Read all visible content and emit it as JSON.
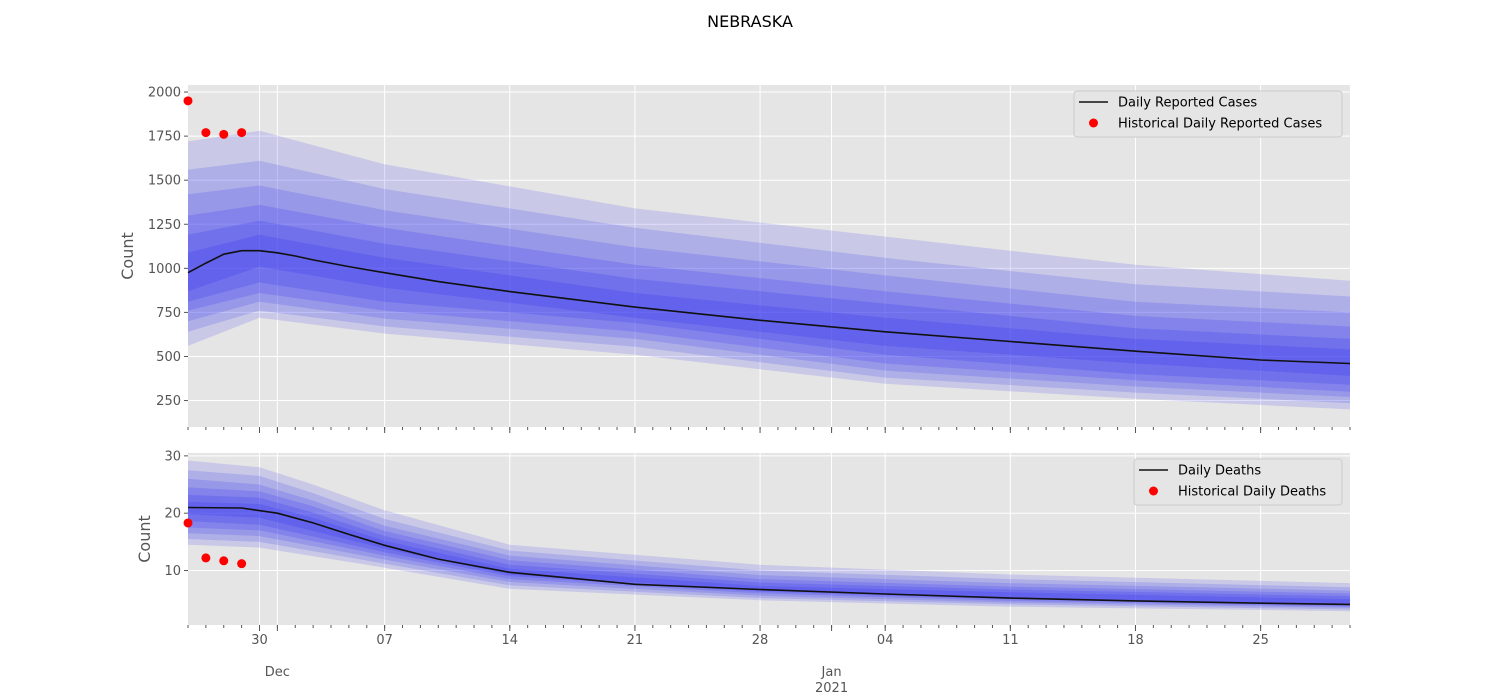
{
  "figure_title": "NEBRASKA",
  "chart_data": [
    {
      "type": "line",
      "ylabel": "Count",
      "ylim": [
        100,
        2040
      ],
      "yticks": [
        250,
        500,
        750,
        1000,
        1250,
        1500,
        1750,
        2000
      ],
      "x_start": "2020-11-26",
      "x_end": "2021-01-30",
      "legend": {
        "placement": "top-right",
        "line_label": "Daily Reported Cases",
        "points_label": "Historical Daily Reported Cases"
      },
      "median": [
        [
          "2020-11-26",
          975
        ],
        [
          "2020-11-27",
          1030
        ],
        [
          "2020-11-28",
          1080
        ],
        [
          "2020-11-29",
          1100
        ],
        [
          "2020-11-30",
          1100
        ],
        [
          "2020-12-01",
          1088
        ],
        [
          "2020-12-02",
          1070
        ],
        [
          "2020-12-03",
          1048
        ],
        [
          "2020-12-05",
          1010
        ],
        [
          "2020-12-07",
          975
        ],
        [
          "2020-12-10",
          925
        ],
        [
          "2020-12-14",
          868
        ],
        [
          "2020-12-21",
          780
        ],
        [
          "2020-12-28",
          705
        ],
        [
          "2021-01-04",
          640
        ],
        [
          "2021-01-11",
          585
        ],
        [
          "2021-01-18",
          530
        ],
        [
          "2021-01-25",
          480
        ],
        [
          "2021-01-30",
          460
        ]
      ],
      "bands": [
        {
          "upper": [
            [
              "2020-11-26",
              1720
            ],
            [
              "2020-11-30",
              1780
            ],
            [
              "2020-12-07",
              1590
            ],
            [
              "2020-12-21",
              1340
            ],
            [
              "2021-01-04",
              1180
            ],
            [
              "2021-01-18",
              1020
            ],
            [
              "2021-01-30",
              930
            ]
          ],
          "lower": [
            [
              "2020-11-26",
              560
            ],
            [
              "2020-11-30",
              720
            ],
            [
              "2020-12-07",
              630
            ],
            [
              "2020-12-21",
              510
            ],
            [
              "2021-01-04",
              345
            ],
            [
              "2021-01-18",
              260
            ],
            [
              "2021-01-30",
              200
            ]
          ]
        },
        {
          "upper": [
            [
              "2020-11-26",
              1560
            ],
            [
              "2020-11-30",
              1610
            ],
            [
              "2020-12-07",
              1450
            ],
            [
              "2020-12-21",
              1230
            ],
            [
              "2021-01-04",
              1060
            ],
            [
              "2021-01-18",
              910
            ],
            [
              "2021-01-30",
              840
            ]
          ],
          "lower": [
            [
              "2020-11-26",
              640
            ],
            [
              "2020-11-30",
              760
            ],
            [
              "2020-12-07",
              670
            ],
            [
              "2020-12-21",
              555
            ],
            [
              "2021-01-04",
              380
            ],
            [
              "2021-01-18",
              295
            ],
            [
              "2021-01-30",
              235
            ]
          ]
        },
        {
          "upper": [
            [
              "2020-11-26",
              1420
            ],
            [
              "2020-11-30",
              1470
            ],
            [
              "2020-12-07",
              1330
            ],
            [
              "2020-12-21",
              1120
            ],
            [
              "2021-01-04",
              960
            ],
            [
              "2021-01-18",
              810
            ],
            [
              "2021-01-30",
              750
            ]
          ],
          "lower": [
            [
              "2020-11-26",
              700
            ],
            [
              "2020-11-30",
              810
            ],
            [
              "2020-12-07",
              715
            ],
            [
              "2020-12-21",
              600
            ],
            [
              "2021-01-04",
              420
            ],
            [
              "2021-01-18",
              330
            ],
            [
              "2021-01-30",
              270
            ]
          ]
        },
        {
          "upper": [
            [
              "2020-11-26",
              1300
            ],
            [
              "2020-11-30",
              1360
            ],
            [
              "2020-12-07",
              1230
            ],
            [
              "2020-12-21",
              1020
            ],
            [
              "2021-01-04",
              870
            ],
            [
              "2021-01-18",
              730
            ],
            [
              "2021-01-30",
              670
            ]
          ],
          "lower": [
            [
              "2020-11-26",
              760
            ],
            [
              "2020-11-30",
              860
            ],
            [
              "2020-12-07",
              760
            ],
            [
              "2020-12-21",
              640
            ],
            [
              "2021-01-04",
              460
            ],
            [
              "2021-01-18",
              365
            ],
            [
              "2021-01-30",
              300
            ]
          ]
        },
        {
          "upper": [
            [
              "2020-11-26",
              1190
            ],
            [
              "2020-11-30",
              1270
            ],
            [
              "2020-12-07",
              1140
            ],
            [
              "2020-12-21",
              940
            ],
            [
              "2021-01-04",
              800
            ],
            [
              "2021-01-18",
              660
            ],
            [
              "2021-01-30",
              600
            ]
          ],
          "lower": [
            [
              "2020-11-26",
              810
            ],
            [
              "2020-11-30",
              920
            ],
            [
              "2020-12-07",
              810
            ],
            [
              "2020-12-21",
              690
            ],
            [
              "2021-01-04",
              510
            ],
            [
              "2021-01-18",
              400
            ],
            [
              "2021-01-30",
              340
            ]
          ]
        },
        {
          "upper": [
            [
              "2020-11-26",
              1090
            ],
            [
              "2020-11-30",
              1190
            ],
            [
              "2020-12-07",
              1060
            ],
            [
              "2020-12-21",
              860
            ],
            [
              "2021-01-04",
              720
            ],
            [
              "2021-01-18",
              600
            ],
            [
              "2021-01-30",
              540
            ]
          ],
          "lower": [
            [
              "2020-11-26",
              870
            ],
            [
              "2020-11-30",
              1010
            ],
            [
              "2020-12-07",
              890
            ],
            [
              "2020-12-21",
              720
            ],
            [
              "2021-01-04",
              560
            ],
            [
              "2021-01-18",
              460
            ],
            [
              "2021-01-30",
              390
            ]
          ]
        }
      ],
      "historical": [
        [
          "2020-11-26",
          1950
        ],
        [
          "2020-11-27",
          1770
        ],
        [
          "2020-11-28",
          1760
        ],
        [
          "2020-11-29",
          1770
        ]
      ]
    },
    {
      "type": "line",
      "ylabel": "Count",
      "ylim": [
        0.5,
        30.5
      ],
      "yticks": [
        10,
        20,
        30
      ],
      "x_start": "2020-11-26",
      "x_end": "2021-01-30",
      "legend": {
        "placement": "top-right",
        "line_label": "Daily Deaths",
        "points_label": "Historical Daily Deaths"
      },
      "median": [
        [
          "2020-11-26",
          21.0
        ],
        [
          "2020-11-29",
          20.9
        ],
        [
          "2020-12-01",
          20.0
        ],
        [
          "2020-12-03",
          18.3
        ],
        [
          "2020-12-05",
          16.3
        ],
        [
          "2020-12-07",
          14.4
        ],
        [
          "2020-12-10",
          12.0
        ],
        [
          "2020-12-14",
          9.7
        ],
        [
          "2020-12-21",
          7.6
        ],
        [
          "2020-12-28",
          6.7
        ],
        [
          "2021-01-04",
          5.9
        ],
        [
          "2021-01-11",
          5.2
        ],
        [
          "2021-01-18",
          4.7
        ],
        [
          "2021-01-25",
          4.3
        ],
        [
          "2021-01-30",
          4.1
        ]
      ],
      "bands": [
        {
          "upper": [
            [
              "2020-11-26",
              29.2
            ],
            [
              "2020-11-30",
              28.0
            ],
            [
              "2020-12-03",
              25.0
            ],
            [
              "2020-12-07",
              20.5
            ],
            [
              "2020-12-14",
              14.5
            ],
            [
              "2020-12-28",
              11.0
            ],
            [
              "2021-01-11",
              9.3
            ],
            [
              "2021-01-30",
              7.8
            ]
          ],
          "lower": [
            [
              "2020-11-26",
              14.5
            ],
            [
              "2020-11-30",
              14.0
            ],
            [
              "2020-12-07",
              10.5
            ],
            [
              "2020-12-14",
              6.8
            ],
            [
              "2020-12-28",
              4.8
            ],
            [
              "2021-01-11",
              3.7
            ],
            [
              "2021-01-30",
              2.9
            ]
          ]
        },
        {
          "upper": [
            [
              "2020-11-26",
              27.5
            ],
            [
              "2020-11-30",
              26.5
            ],
            [
              "2020-12-03",
              23.5
            ],
            [
              "2020-12-07",
              19.0
            ],
            [
              "2020-12-14",
              13.5
            ],
            [
              "2020-12-28",
              10.0
            ],
            [
              "2021-01-11",
              8.5
            ],
            [
              "2021-01-30",
              7.1
            ]
          ],
          "lower": [
            [
              "2020-11-26",
              15.5
            ],
            [
              "2020-11-30",
              15.0
            ],
            [
              "2020-12-07",
              11.2
            ],
            [
              "2020-12-14",
              7.4
            ],
            [
              "2020-12-28",
              5.2
            ],
            [
              "2021-01-11",
              4.1
            ],
            [
              "2021-01-30",
              3.2
            ]
          ]
        },
        {
          "upper": [
            [
              "2020-11-26",
              26.0
            ],
            [
              "2020-11-30",
              25.0
            ],
            [
              "2020-12-03",
              22.2
            ],
            [
              "2020-12-07",
              17.8
            ],
            [
              "2020-12-14",
              12.6
            ],
            [
              "2020-12-28",
              9.2
            ],
            [
              "2021-01-11",
              7.8
            ],
            [
              "2021-01-30",
              6.5
            ]
          ],
          "lower": [
            [
              "2020-11-26",
              16.5
            ],
            [
              "2020-11-30",
              16.0
            ],
            [
              "2020-12-07",
              11.9
            ],
            [
              "2020-12-14",
              8.0
            ],
            [
              "2020-12-28",
              5.6
            ],
            [
              "2021-01-11",
              4.4
            ],
            [
              "2021-01-30",
              3.5
            ]
          ]
        },
        {
          "upper": [
            [
              "2020-11-26",
              24.5
            ],
            [
              "2020-11-30",
              23.8
            ],
            [
              "2020-12-03",
              21.2
            ],
            [
              "2020-12-07",
              16.9
            ],
            [
              "2020-12-14",
              11.8
            ],
            [
              "2020-12-28",
              8.5
            ],
            [
              "2021-01-11",
              7.2
            ],
            [
              "2021-01-30",
              6.0
            ]
          ],
          "lower": [
            [
              "2020-11-26",
              17.5
            ],
            [
              "2020-11-30",
              17.0
            ],
            [
              "2020-12-07",
              12.6
            ],
            [
              "2020-12-14",
              8.5
            ],
            [
              "2020-12-28",
              6.0
            ],
            [
              "2021-01-11",
              4.7
            ],
            [
              "2021-01-30",
              3.7
            ]
          ]
        },
        {
          "upper": [
            [
              "2020-11-26",
              23.2
            ],
            [
              "2020-11-30",
              22.7
            ],
            [
              "2020-12-03",
              20.1
            ],
            [
              "2020-12-07",
              16.0
            ],
            [
              "2020-12-14",
              11.0
            ],
            [
              "2020-12-28",
              7.9
            ],
            [
              "2021-01-11",
              6.7
            ],
            [
              "2021-01-30",
              5.5
            ]
          ],
          "lower": [
            [
              "2020-11-26",
              18.6
            ],
            [
              "2020-11-30",
              18.0
            ],
            [
              "2020-12-07",
              13.2
            ],
            [
              "2020-12-14",
              9.0
            ],
            [
              "2020-12-28",
              6.3
            ],
            [
              "2021-01-11",
              5.0
            ],
            [
              "2021-01-30",
              3.9
            ]
          ]
        },
        {
          "upper": [
            [
              "2020-11-26",
              22.0
            ],
            [
              "2020-11-30",
              21.6
            ],
            [
              "2020-12-03",
              19.2
            ],
            [
              "2020-12-07",
              15.2
            ],
            [
              "2020-12-14",
              10.3
            ],
            [
              "2020-12-28",
              7.3
            ],
            [
              "2021-01-11",
              6.2
            ],
            [
              "2021-01-30",
              5.0
            ]
          ],
          "lower": [
            [
              "2020-11-26",
              19.8
            ],
            [
              "2020-11-30",
              19.2
            ],
            [
              "2020-12-07",
              13.8
            ],
            [
              "2020-12-14",
              9.3
            ],
            [
              "2020-12-28",
              6.5
            ],
            [
              "2021-01-11",
              5.2
            ],
            [
              "2021-01-30",
              4.0
            ]
          ]
        }
      ],
      "historical": [
        [
          "2020-11-26",
          18.3
        ],
        [
          "2020-11-27",
          12.2
        ],
        [
          "2020-11-28",
          11.7
        ],
        [
          "2020-11-29",
          11.2
        ]
      ]
    }
  ],
  "x_axis": {
    "major_ticks": [
      [
        "2020-11-30",
        "30"
      ],
      [
        "2020-12-07",
        "07"
      ],
      [
        "2020-12-14",
        "14"
      ],
      [
        "2020-12-21",
        "21"
      ],
      [
        "2020-12-28",
        "28"
      ],
      [
        "2021-01-04",
        "04"
      ],
      [
        "2021-01-11",
        "11"
      ],
      [
        "2021-01-18",
        "18"
      ],
      [
        "2021-01-25",
        "25"
      ]
    ],
    "month_labels": [
      [
        "2020-12-01",
        "Dec"
      ],
      [
        "2021-01-01",
        "Jan"
      ]
    ],
    "year_label": [
      "2021-01-01",
      "2021"
    ]
  },
  "colors": {
    "band": "#3b3bf0",
    "median": "#111111",
    "historical": "#ff0000",
    "axes_bg": "#e5e5e5",
    "grid": "#ffffff"
  }
}
